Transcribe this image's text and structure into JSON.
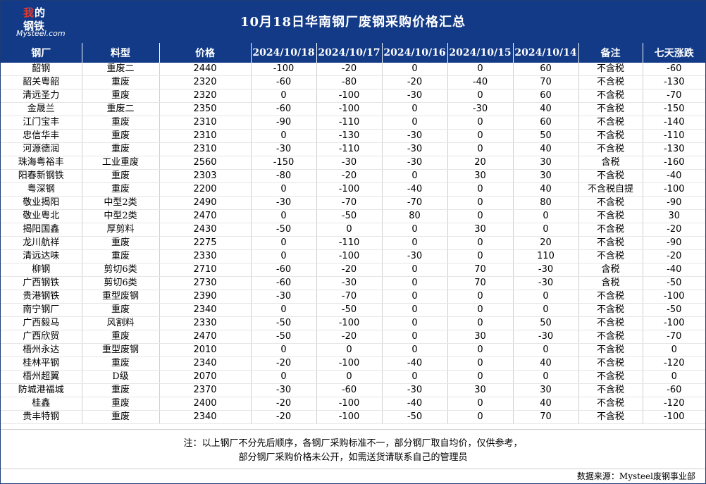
{
  "title": "10月18日华南钢厂废钢采购价格汇总",
  "logo": {
    "line1_red": "我",
    "line1_rest": "的",
    "line2": "钢铁",
    "line3": "Mysteel.com"
  },
  "colors": {
    "header_bg": "#123a87",
    "positive": "#e02020",
    "negative": "#4a8a2f"
  },
  "headers": [
    "钢厂",
    "料型",
    "价格",
    "2024/10/18",
    "2024/10/17",
    "2024/10/16",
    "2024/10/15",
    "2024/10/14",
    "备注",
    "七天涨跌"
  ],
  "rows": [
    {
      "mill": "韶钢",
      "grade": "重废二",
      "price": "2440",
      "changes": [
        "-100",
        "-20",
        "0",
        "0",
        "60"
      ],
      "note": "不含税",
      "week": "-60"
    },
    {
      "mill": "韶关粤韶",
      "grade": "重废",
      "price": "2320",
      "changes": [
        "-60",
        "-80",
        "-20",
        "-40",
        "70"
      ],
      "note": "不含税",
      "week": "-130"
    },
    {
      "mill": "清远圣力",
      "grade": "重废",
      "price": "2320",
      "changes": [
        "0",
        "-100",
        "-30",
        "0",
        "60"
      ],
      "note": "不含税",
      "week": "-70"
    },
    {
      "mill": "金晟兰",
      "grade": "重废二",
      "price": "2350",
      "changes": [
        "-60",
        "-100",
        "0",
        "-30",
        "40"
      ],
      "note": "不含税",
      "week": "-150"
    },
    {
      "mill": "江门宝丰",
      "grade": "重废",
      "price": "2310",
      "changes": [
        "-90",
        "-110",
        "0",
        "0",
        "60"
      ],
      "note": "不含税",
      "week": "-140"
    },
    {
      "mill": "忠信华丰",
      "grade": "重废",
      "price": "2310",
      "changes": [
        "0",
        "-130",
        "-30",
        "0",
        "50"
      ],
      "note": "不含税",
      "week": "-110"
    },
    {
      "mill": "河源德润",
      "grade": "重废",
      "price": "2310",
      "changes": [
        "-30",
        "-110",
        "-30",
        "0",
        "40"
      ],
      "note": "不含税",
      "week": "-130"
    },
    {
      "mill": "珠海粤裕丰",
      "grade": "工业重废",
      "price": "2560",
      "changes": [
        "-150",
        "-30",
        "-30",
        "20",
        "30"
      ],
      "note": "含税",
      "week": "-160"
    },
    {
      "mill": "阳春新钢铁",
      "grade": "重废",
      "price": "2303",
      "changes": [
        "-80",
        "-20",
        "0",
        "30",
        "30"
      ],
      "note": "不含税",
      "week": "-40"
    },
    {
      "mill": "粤深钢",
      "grade": "重废",
      "price": "2200",
      "changes": [
        "0",
        "-100",
        "-40",
        "0",
        "40"
      ],
      "note": "不含税自提",
      "week": "-100"
    },
    {
      "mill": "敬业揭阳",
      "grade": "中型2类",
      "price": "2490",
      "changes": [
        "-30",
        "-70",
        "-70",
        "0",
        "80"
      ],
      "note": "不含税",
      "week": "-90"
    },
    {
      "mill": "敬业粤北",
      "grade": "中型2类",
      "price": "2470",
      "changes": [
        "0",
        "-50",
        "80",
        "0",
        "0"
      ],
      "note": "不含税",
      "week": "30"
    },
    {
      "mill": "揭阳国鑫",
      "grade": "厚剪料",
      "price": "2430",
      "changes": [
        "-50",
        "0",
        "0",
        "30",
        "0"
      ],
      "note": "不含税",
      "week": "-20"
    },
    {
      "mill": "龙川航祥",
      "grade": "重废",
      "price": "2275",
      "changes": [
        "0",
        "-110",
        "0",
        "0",
        "20"
      ],
      "note": "不含税",
      "week": "-90"
    },
    {
      "mill": "清远达味",
      "grade": "重废",
      "price": "2330",
      "changes": [
        "0",
        "-100",
        "-30",
        "0",
        "110"
      ],
      "note": "不含税",
      "week": "-20"
    },
    {
      "mill": "柳钢",
      "grade": "剪切6类",
      "price": "2710",
      "changes": [
        "-60",
        "-20",
        "0",
        "70",
        "-30"
      ],
      "note": "含税",
      "week": "-40"
    },
    {
      "mill": "广西钢铁",
      "grade": "剪切6类",
      "price": "2730",
      "changes": [
        "-60",
        "-30",
        "0",
        "70",
        "-30"
      ],
      "note": "含税",
      "week": "-50"
    },
    {
      "mill": "贵港钢铁",
      "grade": "重型废钢",
      "price": "2390",
      "changes": [
        "-30",
        "-70",
        "0",
        "0",
        "0"
      ],
      "note": "不含税",
      "week": "-100"
    },
    {
      "mill": "南宁钢厂",
      "grade": "重废",
      "price": "2340",
      "changes": [
        "0",
        "-50",
        "0",
        "0",
        "0"
      ],
      "note": "不含税",
      "week": "-50"
    },
    {
      "mill": "广西毅马",
      "grade": "风割料",
      "price": "2330",
      "changes": [
        "-50",
        "-100",
        "0",
        "0",
        "50"
      ],
      "note": "不含税",
      "week": "-100"
    },
    {
      "mill": "广西欣贸",
      "grade": "重废",
      "price": "2470",
      "changes": [
        "-50",
        "-20",
        "0",
        "30",
        "-30"
      ],
      "note": "不含税",
      "week": "-70"
    },
    {
      "mill": "梧州永达",
      "grade": "重型废钢",
      "price": "2010",
      "changes": [
        "0",
        "0",
        "0",
        "0",
        "0"
      ],
      "note": "不含税",
      "week": "0"
    },
    {
      "mill": "桂林平钢",
      "grade": "重废",
      "price": "2340",
      "changes": [
        "-20",
        "-100",
        "-40",
        "0",
        "40"
      ],
      "note": "不含税",
      "week": "-120"
    },
    {
      "mill": "梧州超翼",
      "grade": "D级",
      "price": "2070",
      "changes": [
        "0",
        "0",
        "0",
        "0",
        "0"
      ],
      "note": "不含税",
      "week": "0"
    },
    {
      "mill": "防城港福城",
      "grade": "重废",
      "price": "2370",
      "changes": [
        "-30",
        "-60",
        "-30",
        "30",
        "30"
      ],
      "note": "不含税",
      "week": "-60"
    },
    {
      "mill": "桂鑫",
      "grade": "重废",
      "price": "2400",
      "changes": [
        "-20",
        "-100",
        "-40",
        "0",
        "40"
      ],
      "note": "不含税",
      "week": "-120"
    },
    {
      "mill": "贵丰特钢",
      "grade": "重废",
      "price": "2340",
      "changes": [
        "-20",
        "-100",
        "-50",
        "0",
        "70"
      ],
      "note": "不含税",
      "week": "-100"
    }
  ],
  "footnote": {
    "line1": "注：以上钢厂不分先后顺序，各钢厂采购标准不一，部分钢厂取自均价，仅供参考，",
    "line2": "部分钢厂采购价格未公开，如需送货请联系自己的管理员"
  },
  "source": "数据来源：Mysteel废钢事业部"
}
